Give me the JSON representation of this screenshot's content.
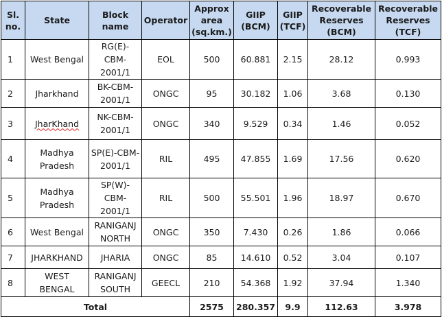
{
  "headers": {
    "sl_no": "Sl. no.",
    "state": "State",
    "block_name": "Block name",
    "operator": "Operator",
    "area": "Approx area (sq.km.)",
    "giip_bcm": "GIIP (BCM)",
    "giip_tcf": "GIIP (TCF)",
    "rr_bcm": "Recoverable Reserves (BCM)",
    "rr_tcf": "Recoverable Reserves (TCF)"
  },
  "rows": [
    {
      "sl": "1",
      "state": "West Bengal",
      "block": "RG(E)-CBM-2001/1",
      "operator": "EOL",
      "area": "500",
      "giip_bcm": "60.881",
      "giip_tcf": "2.15",
      "rr_bcm": "28.12",
      "rr_tcf": "0.993"
    },
    {
      "sl": "2",
      "state": "Jharkhand",
      "block": "BK-CBM-2001/1",
      "operator": "ONGC",
      "area": "95",
      "giip_bcm": "30.182",
      "giip_tcf": "1.06",
      "rr_bcm": "3.68",
      "rr_tcf": "0.130"
    },
    {
      "sl": "3",
      "state": "JharKhand",
      "block": "NK-CBM-2001/1",
      "operator": "ONGC",
      "area": "340",
      "giip_bcm": "9.529",
      "giip_tcf": "0.34",
      "rr_bcm": "1.46",
      "rr_tcf": "0.052"
    },
    {
      "sl": "4",
      "state": "Madhya Pradesh",
      "block": "SP(E)-CBM-2001/1",
      "operator": "RIL",
      "area": "495",
      "giip_bcm": "47.855",
      "giip_tcf": "1.69",
      "rr_bcm": "17.56",
      "rr_tcf": "0.620"
    },
    {
      "sl": "5",
      "state": "Madhya Pradesh",
      "block": "SP(W)-CBM-2001/1",
      "operator": "RIL",
      "area": "500",
      "giip_bcm": "55.501",
      "giip_tcf": "1.96",
      "rr_bcm": "18.97",
      "rr_tcf": "0.670"
    },
    {
      "sl": "6",
      "state": "West Bengal",
      "block": "RANIGANJ NORTH",
      "operator": "ONGC",
      "area": "350",
      "giip_bcm": "7.430",
      "giip_tcf": "0.26",
      "rr_bcm": "1.86",
      "rr_tcf": "0.066"
    },
    {
      "sl": "7",
      "state": "JHARKHAND",
      "block": "JHARIA",
      "operator": "ONGC",
      "area": "85",
      "giip_bcm": "14.610",
      "giip_tcf": "0.52",
      "rr_bcm": "3.04",
      "rr_tcf": "0.107"
    },
    {
      "sl": "8",
      "state": "WEST BENGAL",
      "block": "RANIGANJ SOUTH",
      "operator": "GEECL",
      "area": "210",
      "giip_bcm": "54.368",
      "giip_tcf": "1.92",
      "rr_bcm": "37.94",
      "rr_tcf": "1.340"
    }
  ],
  "total": {
    "label": "Total",
    "area": "2575",
    "giip_bcm": "280.357",
    "giip_tcf": "9.9",
    "rr_bcm": "112.63",
    "rr_tcf": "3.978"
  },
  "colors": {
    "header_bg": "#c6d9f1",
    "spellcheck_underline": "#e02020"
  }
}
